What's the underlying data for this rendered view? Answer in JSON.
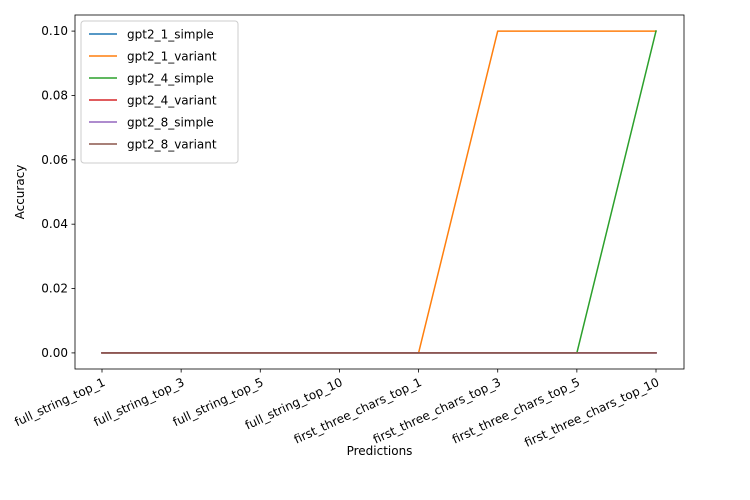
{
  "chart_data": {
    "type": "line",
    "title": "",
    "xlabel": "Predictions",
    "ylabel": "Accuracy",
    "categories": [
      "full_string_top_1",
      "full_string_top_3",
      "full_string_top_5",
      "full_string_top_10",
      "first_three_chars_top_1",
      "first_three_chars_top_3",
      "first_three_chars_top_5",
      "first_three_chars_top_10"
    ],
    "ylim": [
      -0.005,
      0.105
    ],
    "yticks": [
      0.0,
      0.02,
      0.04,
      0.06,
      0.08,
      0.1
    ],
    "ytick_labels": [
      "0.00",
      "0.02",
      "0.04",
      "0.06",
      "0.08",
      "0.10"
    ],
    "grid": false,
    "legend_position": "top-left",
    "series": [
      {
        "name": "gpt2_1_simple",
        "color": "#1f77b4",
        "values": [
          0,
          0,
          0,
          0,
          0,
          0,
          0,
          0
        ]
      },
      {
        "name": "gpt2_1_variant",
        "color": "#ff7f0e",
        "values": [
          0,
          0,
          0,
          0,
          0,
          0.1,
          0.1,
          0.1
        ]
      },
      {
        "name": "gpt2_4_simple",
        "color": "#2ca02c",
        "values": [
          0,
          0,
          0,
          0,
          0,
          0,
          0,
          0.1
        ]
      },
      {
        "name": "gpt2_4_variant",
        "color": "#d62728",
        "values": [
          0,
          0,
          0,
          0,
          0,
          0,
          0,
          0
        ]
      },
      {
        "name": "gpt2_8_simple",
        "color": "#9467bd",
        "values": [
          0,
          0,
          0,
          0,
          0,
          0,
          0,
          0
        ]
      },
      {
        "name": "gpt2_8_variant",
        "color": "#8c564b",
        "values": [
          0,
          0,
          0,
          0,
          0,
          0,
          0,
          0
        ]
      }
    ]
  }
}
